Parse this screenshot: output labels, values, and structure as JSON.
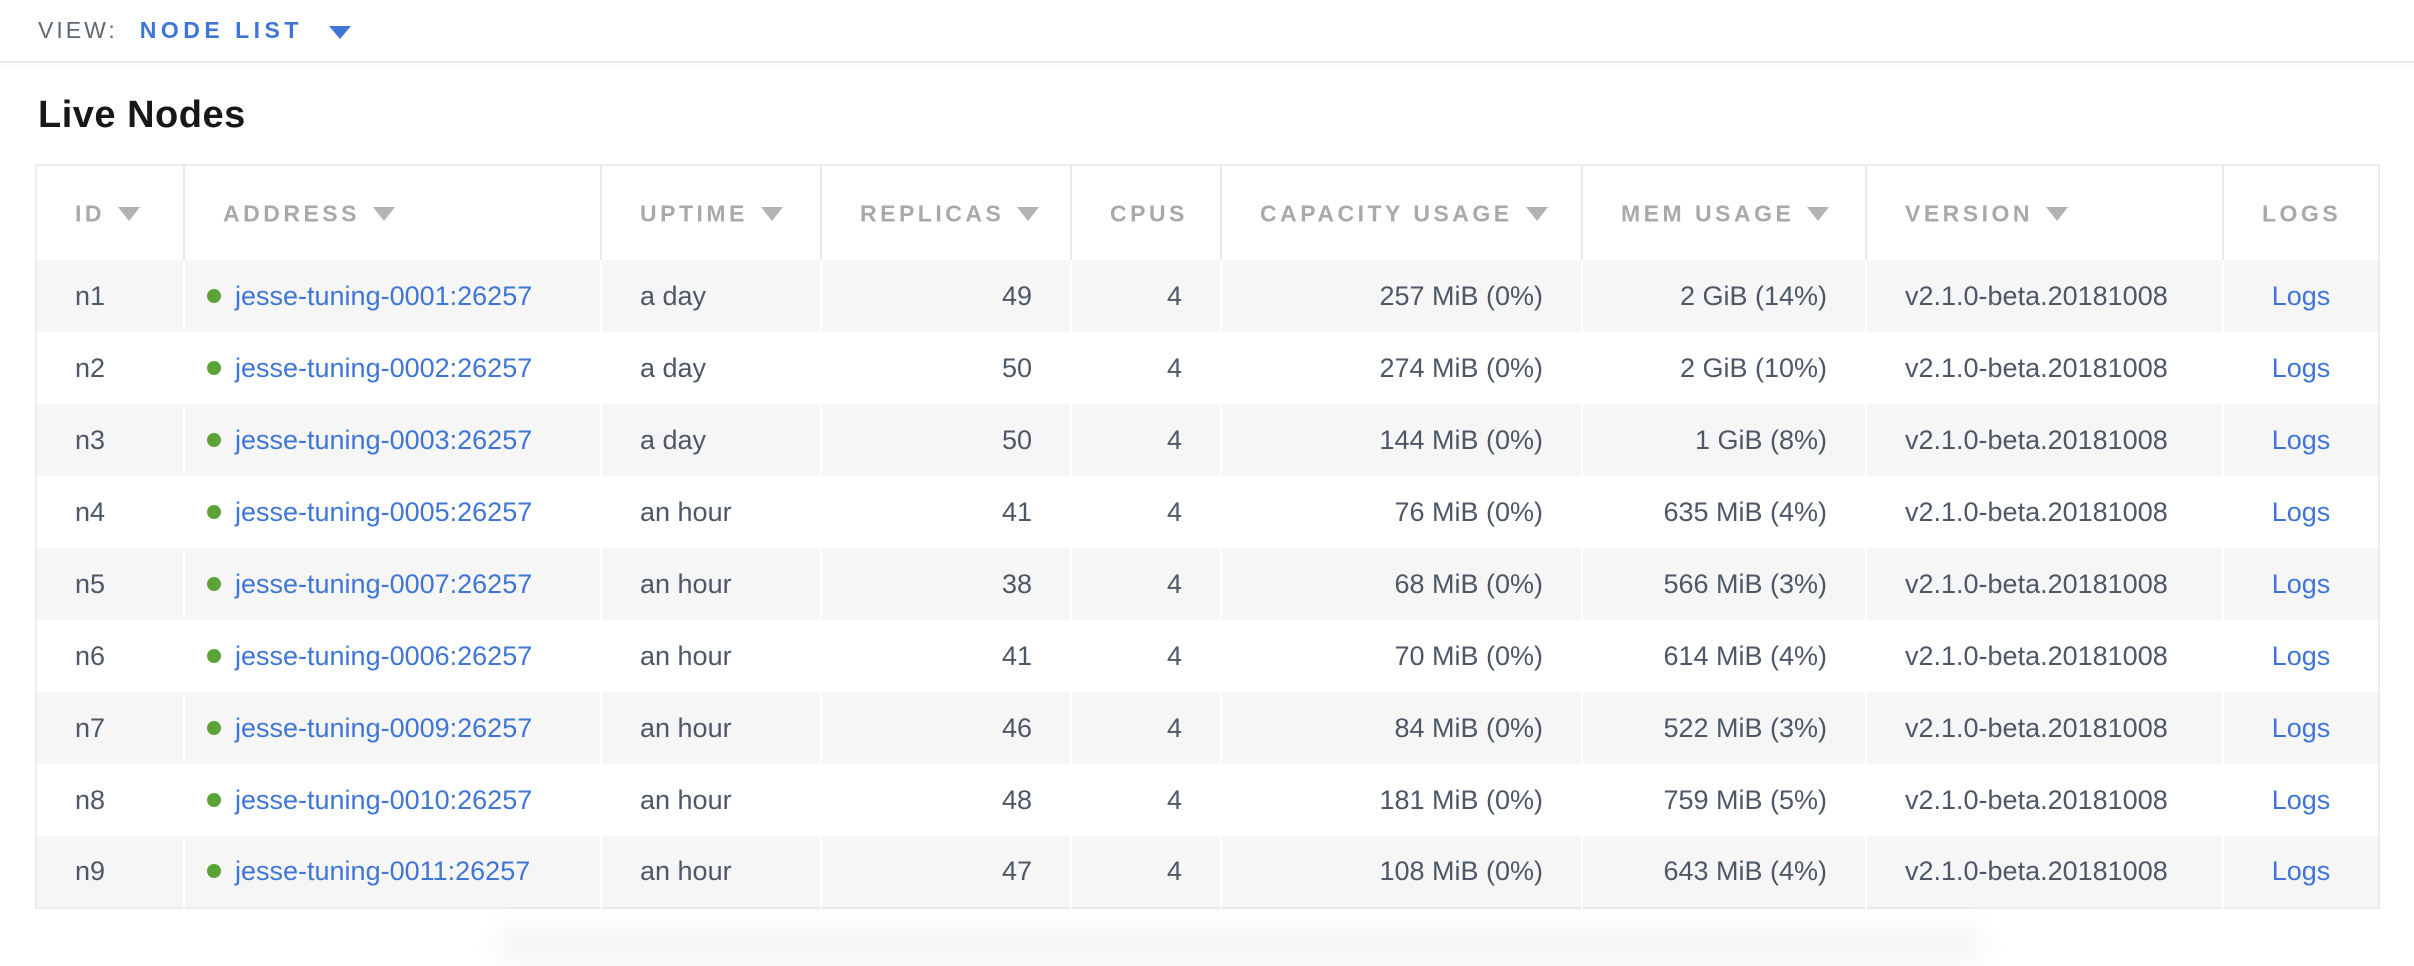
{
  "view_bar": {
    "label": "VIEW:",
    "selected": "NODE LIST"
  },
  "page": {
    "title": "Live Nodes"
  },
  "table": {
    "columns": [
      {
        "key": "id",
        "label": "ID",
        "sortable": true,
        "align": "left"
      },
      {
        "key": "address",
        "label": "ADDRESS",
        "sortable": true,
        "align": "left"
      },
      {
        "key": "uptime",
        "label": "UPTIME",
        "sortable": true,
        "align": "left"
      },
      {
        "key": "replicas",
        "label": "REPLICAS",
        "sortable": true,
        "align": "right"
      },
      {
        "key": "cpus",
        "label": "CPUS",
        "sortable": false,
        "align": "right"
      },
      {
        "key": "capacity",
        "label": "CAPACITY USAGE",
        "sortable": true,
        "align": "right"
      },
      {
        "key": "mem",
        "label": "MEM USAGE",
        "sortable": true,
        "align": "right"
      },
      {
        "key": "version",
        "label": "VERSION",
        "sortable": true,
        "align": "left"
      },
      {
        "key": "logs",
        "label": "LOGS",
        "sortable": false,
        "align": "center"
      }
    ],
    "rows": [
      {
        "id": "n1",
        "address": "jesse-tuning-0001:26257",
        "uptime": "a day",
        "replicas": "49",
        "cpus": "4",
        "capacity": "257 MiB (0%)",
        "mem": "2 GiB (14%)",
        "version": "v2.1.0-beta.20181008",
        "logs": "Logs"
      },
      {
        "id": "n2",
        "address": "jesse-tuning-0002:26257",
        "uptime": "a day",
        "replicas": "50",
        "cpus": "4",
        "capacity": "274 MiB (0%)",
        "mem": "2 GiB (10%)",
        "version": "v2.1.0-beta.20181008",
        "logs": "Logs"
      },
      {
        "id": "n3",
        "address": "jesse-tuning-0003:26257",
        "uptime": "a day",
        "replicas": "50",
        "cpus": "4",
        "capacity": "144 MiB (0%)",
        "mem": "1 GiB (8%)",
        "version": "v2.1.0-beta.20181008",
        "logs": "Logs"
      },
      {
        "id": "n4",
        "address": "jesse-tuning-0005:26257",
        "uptime": "an hour",
        "replicas": "41",
        "cpus": "4",
        "capacity": "76 MiB (0%)",
        "mem": "635 MiB (4%)",
        "version": "v2.1.0-beta.20181008",
        "logs": "Logs"
      },
      {
        "id": "n5",
        "address": "jesse-tuning-0007:26257",
        "uptime": "an hour",
        "replicas": "38",
        "cpus": "4",
        "capacity": "68 MiB (0%)",
        "mem": "566 MiB (3%)",
        "version": "v2.1.0-beta.20181008",
        "logs": "Logs"
      },
      {
        "id": "n6",
        "address": "jesse-tuning-0006:26257",
        "uptime": "an hour",
        "replicas": "41",
        "cpus": "4",
        "capacity": "70 MiB (0%)",
        "mem": "614 MiB (4%)",
        "version": "v2.1.0-beta.20181008",
        "logs": "Logs"
      },
      {
        "id": "n7",
        "address": "jesse-tuning-0009:26257",
        "uptime": "an hour",
        "replicas": "46",
        "cpus": "4",
        "capacity": "84 MiB (0%)",
        "mem": "522 MiB (3%)",
        "version": "v2.1.0-beta.20181008",
        "logs": "Logs"
      },
      {
        "id": "n8",
        "address": "jesse-tuning-0010:26257",
        "uptime": "an hour",
        "replicas": "48",
        "cpus": "4",
        "capacity": "181 MiB (0%)",
        "mem": "759 MiB (5%)",
        "version": "v2.1.0-beta.20181008",
        "logs": "Logs"
      },
      {
        "id": "n9",
        "address": "jesse-tuning-0011:26257",
        "uptime": "an hour",
        "replicas": "47",
        "cpus": "4",
        "capacity": "108 MiB (0%)",
        "mem": "643 MiB (4%)",
        "version": "v2.1.0-beta.20181008",
        "logs": "Logs"
      }
    ]
  },
  "colors": {
    "accent_blue": "#3f76d6",
    "status_green": "#5aa434",
    "header_text_gray": "#a9a9a9",
    "cell_text": "#4e5766",
    "row_alt_bg": "#f6f6f6",
    "border_gray": "#ececec"
  }
}
